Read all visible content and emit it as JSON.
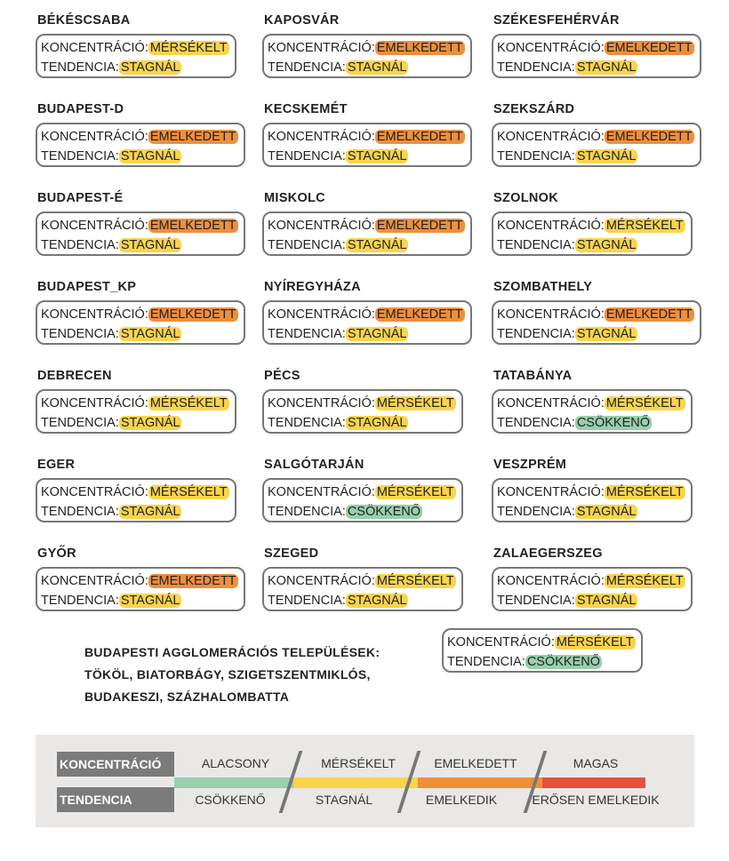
{
  "labels": {
    "concentration": "KONCENTRÁCIÓ:",
    "trend": "TENDENCIA:"
  },
  "colors": {
    "moderate": "#f9d44c",
    "elevated": "#ee8f3c",
    "decreasing": "#98cfad",
    "high": "#e4513a"
  },
  "columns": [
    [
      {
        "city": "BÉKÉSCSABA",
        "conc": "MÉRSÉKELT",
        "trend": "STAGNÁL"
      },
      {
        "city": "BUDAPEST-D",
        "conc": "EMELKEDETT",
        "trend": "STAGNÁL"
      },
      {
        "city": "BUDAPEST-É",
        "conc": "EMELKEDETT",
        "trend": "STAGNÁL"
      },
      {
        "city": "BUDAPEST_KP",
        "conc": "EMELKEDETT",
        "trend": "STAGNÁL"
      },
      {
        "city": "DEBRECEN",
        "conc": "MÉRSÉKELT",
        "trend": "STAGNÁL"
      },
      {
        "city": "EGER",
        "conc": "MÉRSÉKELT",
        "trend": "STAGNÁL"
      },
      {
        "city": "GYŐR",
        "conc": "EMELKEDETT",
        "trend": "STAGNÁL"
      }
    ],
    [
      {
        "city": "KAPOSVÁR",
        "conc": "EMELKEDETT",
        "trend": "STAGNÁL"
      },
      {
        "city": "KECSKEMÉT",
        "conc": "EMELKEDETT",
        "trend": "STAGNÁL"
      },
      {
        "city": "MISKOLC",
        "conc": "EMELKEDETT",
        "trend": "STAGNÁL"
      },
      {
        "city": "NYÍREGYHÁZA",
        "conc": "EMELKEDETT",
        "trend": "STAGNÁL"
      },
      {
        "city": "PÉCS",
        "conc": "MÉRSÉKELT",
        "trend": "STAGNÁL"
      },
      {
        "city": "SALGÓTARJÁN",
        "conc": "MÉRSÉKELT",
        "trend": "CSÖKKENŐ"
      },
      {
        "city": "SZEGED",
        "conc": "MÉRSÉKELT",
        "trend": "STAGNÁL"
      }
    ],
    [
      {
        "city": "SZÉKESFEHÉRVÁR",
        "conc": "EMELKEDETT",
        "trend": "STAGNÁL"
      },
      {
        "city": "SZEKSZÁRD",
        "conc": "EMELKEDETT",
        "trend": "STAGNÁL"
      },
      {
        "city": "SZOLNOK",
        "conc": "MÉRSÉKELT",
        "trend": "STAGNÁL"
      },
      {
        "city": "SZOMBATHELY",
        "conc": "EMELKEDETT",
        "trend": "STAGNÁL"
      },
      {
        "city": "TATABÁNYA",
        "conc": "MÉRSÉKELT",
        "trend": "CSÖKKENŐ"
      },
      {
        "city": "VESZPRÉM",
        "conc": "MÉRSÉKELT",
        "trend": "STAGNÁL"
      },
      {
        "city": "ZALAEGERSZEG",
        "conc": "MÉRSÉKELT",
        "trend": "STAGNÁL"
      }
    ]
  ],
  "agglomeration": {
    "lines": [
      "BUDAPESTI AGGLOMERÁCIÓS TELEPÜLÉSEK:",
      "TÖKÖL, BIATORBÁGY, SZIGETSZENTMIKLÓS,",
      "BUDAKESZI, SZÁZHALOMBATTA"
    ],
    "conc": "MÉRSÉKELT",
    "trend": "CSÖKKENŐ"
  },
  "legend": {
    "concentration_label": "KONCENTRÁCIÓ",
    "trend_label": "TENDENCIA",
    "concentration_levels": [
      "ALACSONY",
      "MÉRSÉKELT",
      "EMELKEDETT",
      "MAGAS"
    ],
    "trend_levels": [
      "CSÖKKENŐ",
      "STAGNÁL",
      "EMELKEDIK",
      "ERŐSEN EMELKEDIK"
    ]
  }
}
